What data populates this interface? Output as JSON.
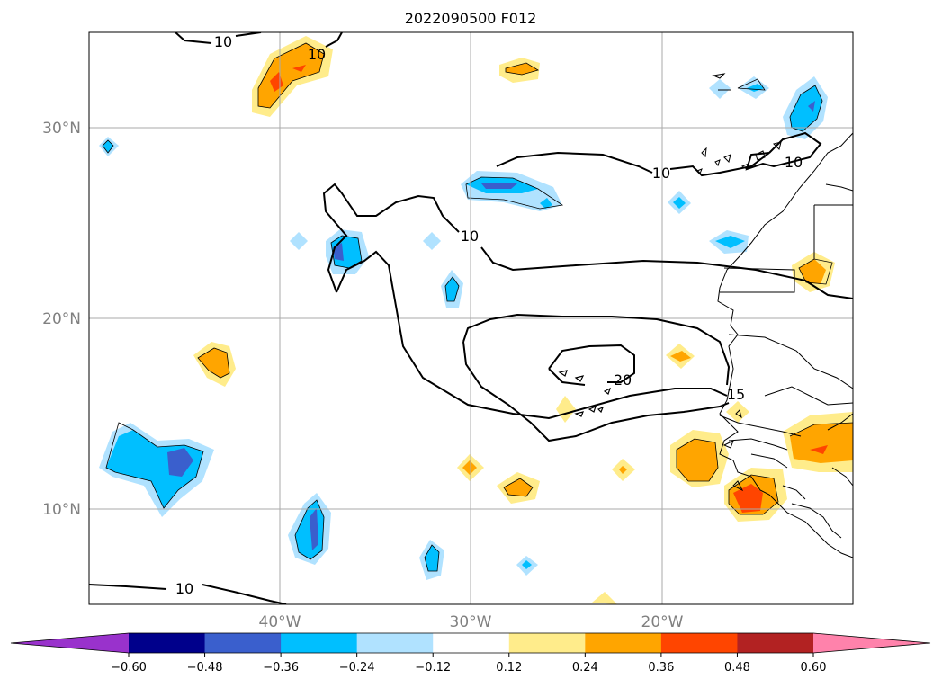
{
  "title": "2022090500 F012",
  "map": {
    "lon_range": [
      -50,
      -10
    ],
    "lat_range": [
      5,
      35
    ],
    "lat_ticks": [
      {
        "value": 30,
        "label": "30°N"
      },
      {
        "value": 20,
        "label": "20°N"
      },
      {
        "value": 10,
        "label": "10°N"
      }
    ],
    "lon_ticks": [
      {
        "value": -40,
        "label": "40°W"
      },
      {
        "value": -30,
        "label": "30°W"
      },
      {
        "value": -20,
        "label": "20°W"
      }
    ],
    "grid": true,
    "contour_labels": [
      "10",
      "10",
      "10",
      "10",
      "20",
      "15",
      "10"
    ]
  },
  "colorbar": {
    "ticks": [
      "−0.60",
      "−0.48",
      "−0.36",
      "−0.24",
      "−0.12",
      "0.12",
      "0.24",
      "0.36",
      "0.48",
      "0.60"
    ],
    "colors": [
      "#9932cc",
      "#00008b",
      "#3a5fcd",
      "#00bfff",
      "#b0e2ff",
      "#ffffff",
      "#ffec8b",
      "#ffa500",
      "#ff4500",
      "#b22222",
      "#ff82ab"
    ]
  }
}
